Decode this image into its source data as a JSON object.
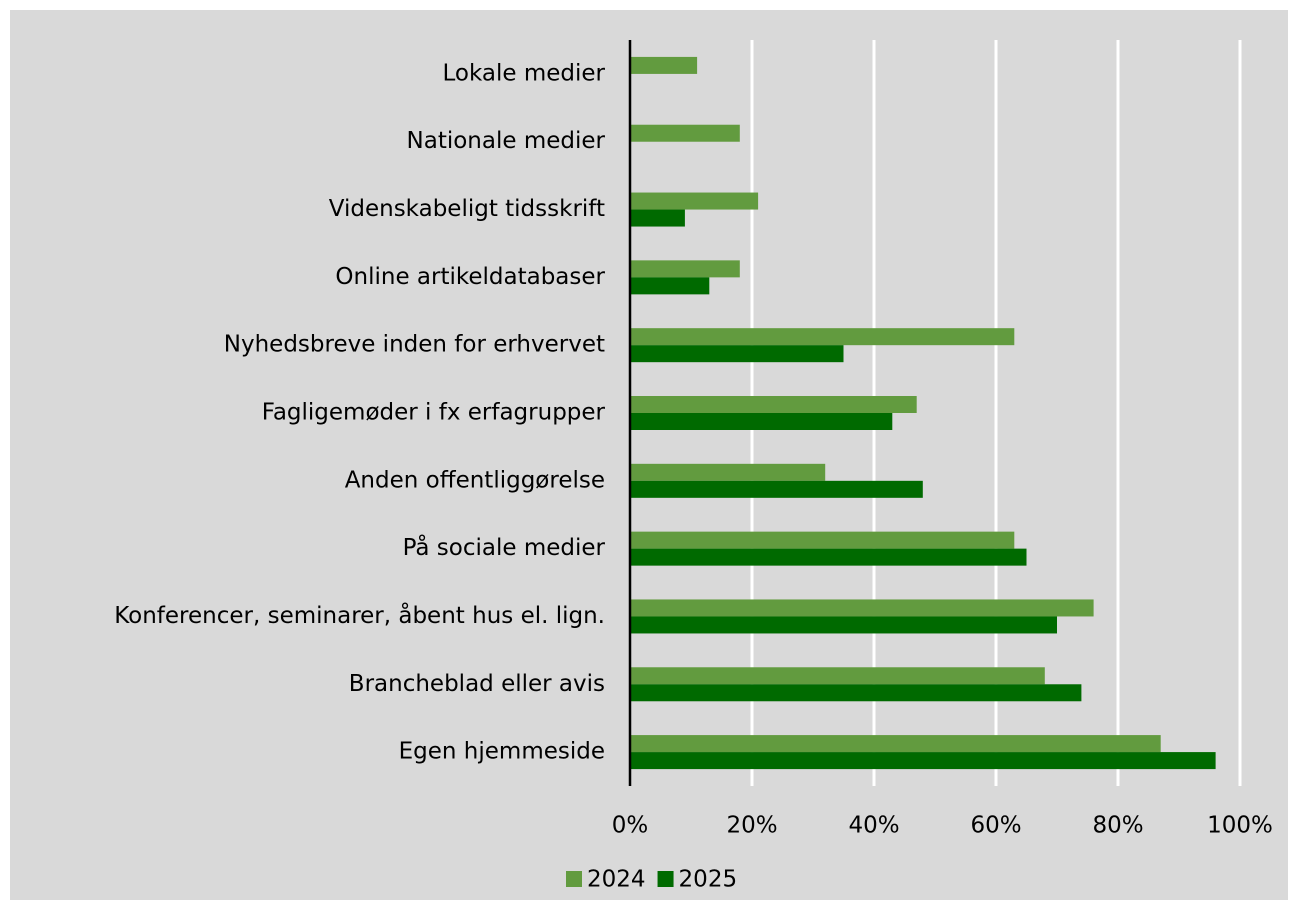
{
  "chart_data": {
    "type": "bar",
    "orientation": "horizontal",
    "categories": [
      "Lokale medier",
      "Nationale medier",
      "Videnskabeligt tidsskrift",
      "Online artikeldatabaser",
      "Nyhedsbreve inden for erhvervet",
      "Fagligemøder i fx erfagrupper",
      "Anden offentliggørelse",
      "På sociale medier",
      "Konferencer, seminarer, åbent hus el. lign.",
      "Brancheblad eller avis",
      "Egen hjemmeside"
    ],
    "series": [
      {
        "name": "2024",
        "color": "#629b3f",
        "values": [
          11,
          18,
          21,
          18,
          63,
          47,
          32,
          63,
          76,
          68,
          87
        ]
      },
      {
        "name": "2025",
        "color": "#006a00",
        "values": [
          0,
          0,
          9,
          13,
          35,
          43,
          48,
          65,
          70,
          74,
          96
        ]
      }
    ],
    "xlim": [
      0,
      100
    ],
    "xticks": [
      {
        "value": 0,
        "label": "0%"
      },
      {
        "value": 20,
        "label": "20%"
      },
      {
        "value": 40,
        "label": "40%"
      },
      {
        "value": 60,
        "label": "60%"
      },
      {
        "value": 80,
        "label": "80%"
      },
      {
        "value": 100,
        "label": "100%"
      }
    ],
    "grid": true,
    "legend": "bottom"
  }
}
